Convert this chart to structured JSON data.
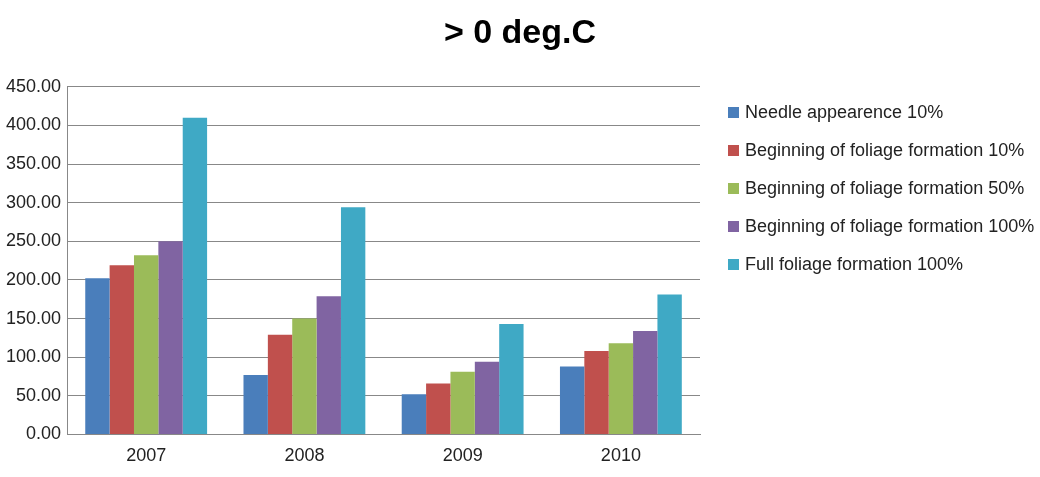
{
  "chart_data": {
    "type": "bar",
    "title": "> 0 deg.C",
    "categories": [
      "2007",
      "2008",
      "2009",
      "2010"
    ],
    "series": [
      {
        "name": "Needle appearence 10%",
        "color": "#4a7ebb",
        "values": [
          202,
          77,
          52,
          88
        ]
      },
      {
        "name": "Beginning of foliage formation 10%",
        "color": "#c0504d",
        "values": [
          219,
          129,
          66,
          108
        ]
      },
      {
        "name": "Beginning of foliage formation 50%",
        "color": "#9bbb59",
        "values": [
          232,
          150,
          81,
          118
        ]
      },
      {
        "name": "Beginning of foliage formation 100%",
        "color": "#8064a2",
        "values": [
          250,
          179,
          94,
          134
        ]
      },
      {
        "name": "Full foliage formation 100%",
        "color": "#3fa9c5",
        "values": [
          410,
          294,
          143,
          181
        ]
      }
    ],
    "ylim": [
      0,
      450
    ],
    "yticks": [
      {
        "value": 0,
        "label": "0.00"
      },
      {
        "value": 50,
        "label": "50.00"
      },
      {
        "value": 100,
        "label": "100.00"
      },
      {
        "value": 150,
        "label": "150.00"
      },
      {
        "value": 200,
        "label": "200.00"
      },
      {
        "value": 250,
        "label": "250.00"
      },
      {
        "value": 300,
        "label": "300.00"
      },
      {
        "value": 350,
        "label": "350.00"
      },
      {
        "value": 400,
        "label": "400.00"
      },
      {
        "value": 450,
        "label": "450.00"
      }
    ],
    "grid": "y",
    "legend": "right"
  }
}
